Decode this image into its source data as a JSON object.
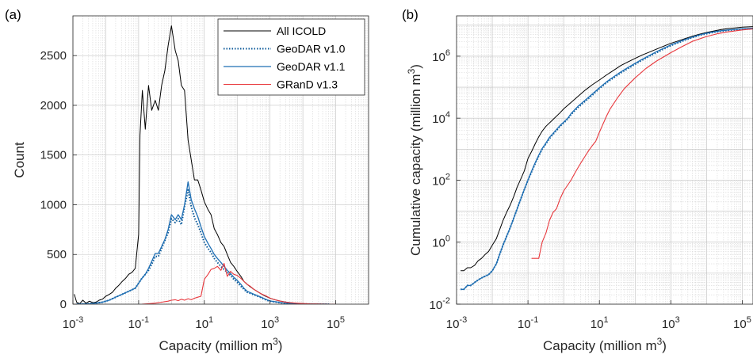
{
  "panels": {
    "a": "(a)",
    "b": "(b)"
  },
  "colors": {
    "all_icold": "#000000",
    "geodar_v10": "#0b5a9a",
    "geodar_v11": "#1f6fb4",
    "grand": "#e8383d",
    "grid": "#c8c8c8",
    "axis": "#262626"
  },
  "chart_data": [
    {
      "panel": "(a)",
      "type": "line",
      "xscale": "log",
      "xlim": [
        0.001,
        1000000
      ],
      "ylim": [
        0,
        2900
      ],
      "xlabel": "Capacity (million m³)",
      "ylabel": "Count",
      "xticks": [
        {
          "t": "10",
          "s": "-3"
        },
        {
          "t": "10",
          "s": "-1"
        },
        {
          "t": "10",
          "s": "1"
        },
        {
          "t": "10",
          "s": "3"
        },
        {
          "t": "10",
          "s": "5"
        }
      ],
      "yticks": [
        "0",
        "500",
        "1000",
        "1500",
        "2000",
        "2500"
      ],
      "grid": true,
      "legend": "top-right",
      "series": [
        {
          "name": "All ICOLD",
          "style": "solid",
          "x": [
            0.0011,
            0.0013,
            0.0016,
            0.002,
            0.0025,
            0.0032,
            0.004,
            0.005,
            0.0063,
            0.0079,
            0.01,
            0.013,
            0.016,
            0.02,
            0.025,
            0.032,
            0.04,
            0.05,
            0.063,
            0.079,
            0.1,
            0.11,
            0.13,
            0.16,
            0.2,
            0.25,
            0.32,
            0.4,
            0.5,
            0.63,
            0.79,
            1.0,
            1.3,
            1.6,
            2.0,
            2.5,
            3.2,
            4.0,
            5.0,
            6.3,
            7.9,
            10,
            13,
            16,
            20,
            25,
            32,
            40,
            50,
            63,
            79,
            100,
            130,
            160,
            200,
            250,
            320,
            400,
            500,
            630,
            790,
            1000,
            1300,
            1600,
            2000,
            2500,
            3200,
            4000,
            5000,
            6300,
            7900,
            10000,
            13000,
            16000,
            20000,
            25000,
            32000,
            40000,
            50000,
            63000,
            79000,
            100000
          ],
          "y": [
            100,
            20,
            5,
            40,
            10,
            30,
            15,
            20,
            40,
            50,
            80,
            100,
            120,
            160,
            190,
            230,
            260,
            300,
            320,
            360,
            700,
            1700,
            2150,
            1760,
            2200,
            1950,
            2050,
            1950,
            2200,
            2350,
            2600,
            2800,
            2550,
            2450,
            2200,
            2150,
            1650,
            1450,
            1250,
            1250,
            1150,
            1030,
            950,
            900,
            760,
            700,
            620,
            580,
            500,
            420,
            380,
            330,
            280,
            230,
            200,
            175,
            150,
            130,
            110,
            90,
            75,
            60,
            48,
            40,
            32,
            26,
            20,
            16,
            12,
            9,
            7,
            5,
            4,
            3,
            2,
            2,
            1,
            1,
            1,
            0,
            0,
            0
          ]
        },
        {
          "name": "GeoDAR v1.0",
          "style": "dotted",
          "x": [
            0.0013,
            0.002,
            0.0032,
            0.005,
            0.0079,
            0.0126,
            0.02,
            0.032,
            0.05,
            0.079,
            0.126,
            0.16,
            0.2,
            0.25,
            0.32,
            0.4,
            0.5,
            0.63,
            0.79,
            1.0,
            1.3,
            1.6,
            2.0,
            2.5,
            3.2,
            4.0,
            5.0,
            6.3,
            7.9,
            10,
            13,
            16,
            20,
            25,
            32,
            40,
            50,
            63,
            79,
            100,
            130,
            160,
            200,
            320,
            500,
            790,
            1000,
            1600,
            2500,
            4000,
            6300,
            10000,
            16000,
            25000,
            40000,
            63000
          ],
          "y": [
            0,
            2,
            5,
            10,
            20,
            40,
            70,
            100,
            130,
            160,
            260,
            300,
            340,
            400,
            480,
            480,
            560,
            640,
            720,
            860,
            820,
            860,
            800,
            980,
            1150,
            980,
            870,
            800,
            720,
            620,
            560,
            520,
            460,
            420,
            380,
            350,
            320,
            290,
            250,
            220,
            180,
            150,
            120,
            95,
            70,
            40,
            30,
            20,
            10,
            6,
            3,
            2,
            1,
            0,
            0,
            0
          ]
        },
        {
          "name": "GeoDAR v1.1",
          "style": "solid",
          "x": [
            0.0013,
            0.002,
            0.0032,
            0.005,
            0.0079,
            0.0126,
            0.02,
            0.032,
            0.05,
            0.079,
            0.126,
            0.16,
            0.2,
            0.25,
            0.32,
            0.4,
            0.5,
            0.63,
            0.79,
            1.0,
            1.3,
            1.6,
            2.0,
            2.5,
            3.2,
            4.0,
            5.0,
            6.3,
            7.9,
            10,
            13,
            16,
            20,
            25,
            32,
            40,
            50,
            63,
            79,
            100,
            130,
            160,
            200,
            320,
            500,
            790,
            1000,
            1600,
            2500,
            4000,
            6300,
            10000,
            16000,
            25000,
            40000,
            63000
          ],
          "y": [
            0,
            2,
            5,
            10,
            20,
            40,
            70,
            100,
            130,
            160,
            260,
            300,
            360,
            430,
            510,
            510,
            580,
            650,
            750,
            900,
            850,
            900,
            850,
            1000,
            1230,
            1050,
            960,
            880,
            780,
            680,
            610,
            560,
            500,
            460,
            420,
            380,
            340,
            310,
            270,
            240,
            200,
            160,
            130,
            100,
            75,
            45,
            32,
            22,
            12,
            7,
            4,
            2,
            1,
            0,
            0,
            0
          ]
        },
        {
          "name": "GRanD v1.3",
          "style": "solid",
          "x": [
            0.126,
            0.2,
            0.32,
            0.5,
            0.79,
            1.0,
            1.3,
            1.6,
            2.0,
            2.5,
            3.2,
            4.0,
            5.0,
            6.3,
            7.9,
            10,
            13,
            16,
            20,
            25,
            32,
            40,
            50,
            63,
            79,
            100,
            130,
            160,
            200,
            250,
            320,
            400,
            500,
            790,
            1000,
            1600,
            2500,
            4000,
            6300,
            10000,
            16000,
            25000,
            40000,
            63000,
            100000
          ],
          "y": [
            0,
            5,
            10,
            20,
            30,
            40,
            45,
            35,
            50,
            40,
            55,
            45,
            60,
            70,
            80,
            250,
            300,
            350,
            360,
            380,
            340,
            410,
            280,
            330,
            300,
            290,
            260,
            230,
            200,
            180,
            150,
            130,
            110,
            80,
            60,
            40,
            25,
            15,
            10,
            6,
            3,
            2,
            1,
            0,
            0
          ]
        }
      ]
    },
    {
      "panel": "(b)",
      "type": "line",
      "xscale": "log",
      "yscale": "log",
      "xlim": [
        0.001,
        200000
      ],
      "ylim": [
        0.01,
        20000000
      ],
      "xlabel": "Capacity (million m³)",
      "ylabel": "Cumulative capacity (million m³)",
      "xticks": [
        {
          "t": "10",
          "s": "-3"
        },
        {
          "t": "10",
          "s": "-1"
        },
        {
          "t": "10",
          "s": "1"
        },
        {
          "t": "10",
          "s": "3"
        },
        {
          "t": "10",
          "s": "5"
        }
      ],
      "yticks": [
        {
          "t": "10",
          "s": "-2"
        },
        {
          "t": "10",
          "s": "0"
        },
        {
          "t": "10",
          "s": "2"
        },
        {
          "t": "10",
          "s": "4"
        },
        {
          "t": "10",
          "s": "6"
        }
      ],
      "grid": true,
      "series": [
        {
          "name": "All ICOLD",
          "style": "solid",
          "x": [
            0.0013,
            0.0016,
            0.002,
            0.0025,
            0.0032,
            0.004,
            0.005,
            0.0063,
            0.0079,
            0.01,
            0.013,
            0.016,
            0.02,
            0.025,
            0.032,
            0.04,
            0.05,
            0.063,
            0.079,
            0.1,
            0.13,
            0.16,
            0.2,
            0.25,
            0.32,
            0.5,
            0.79,
            1.0,
            1.6,
            2.5,
            4.0,
            6.3,
            10,
            16,
            25,
            40,
            63,
            100,
            160,
            250,
            400,
            630,
            1000,
            1600,
            2500,
            4000,
            6300,
            10000,
            16000,
            25000,
            40000,
            63000,
            100000,
            200000
          ],
          "y": [
            0.12,
            0.12,
            0.15,
            0.15,
            0.18,
            0.25,
            0.3,
            0.4,
            0.5,
            0.8,
            1.3,
            2.5,
            5,
            9,
            16,
            30,
            60,
            110,
            200,
            500,
            900,
            1500,
            2500,
            3800,
            5500,
            9000,
            15000,
            20000,
            32000,
            50000,
            80000,
            120000,
            170000,
            250000,
            350000,
            500000,
            650000,
            850000,
            1100000,
            1350000,
            1700000,
            2100000,
            2600000,
            3100000,
            3700000,
            4400000,
            5100000,
            5800000,
            6500000,
            7200000,
            7800000,
            8200000,
            8600000,
            9000000
          ]
        },
        {
          "name": "GeoDAR v1.0",
          "style": "dotted",
          "x": [
            0.0013,
            0.0016,
            0.002,
            0.0025,
            0.0032,
            0.004,
            0.005,
            0.0063,
            0.0079,
            0.01,
            0.013,
            0.016,
            0.02,
            0.025,
            0.032,
            0.04,
            0.05,
            0.063,
            0.079,
            0.1,
            0.13,
            0.16,
            0.2,
            0.25,
            0.32,
            0.4,
            0.5,
            0.63,
            0.79,
            1.0,
            1.3,
            1.6,
            2.5,
            4.0,
            6.3,
            10,
            16,
            25,
            40,
            63,
            100,
            160,
            250,
            400,
            630,
            1000,
            1600,
            2500,
            4000,
            6300,
            10000,
            16000,
            25000,
            40000,
            63000,
            100000,
            200000
          ],
          "y": [
            0.03,
            0.03,
            0.04,
            0.04,
            0.05,
            0.06,
            0.07,
            0.08,
            0.09,
            0.12,
            0.2,
            0.4,
            0.8,
            1.5,
            3,
            6,
            12,
            25,
            50,
            100,
            200,
            350,
            600,
            1000,
            1500,
            2200,
            3000,
            4000,
            5500,
            7000,
            9500,
            13000,
            22000,
            35000,
            55000,
            90000,
            140000,
            200000,
            290000,
            400000,
            550000,
            750000,
            1000000,
            1300000,
            1700000,
            2200000,
            2700000,
            3300000,
            4000000,
            4700000,
            5300000,
            5900000,
            6400000,
            6800000,
            7100000,
            7400000,
            7800000
          ]
        },
        {
          "name": "GeoDAR v1.1",
          "style": "solid",
          "x": [
            0.0013,
            0.0016,
            0.002,
            0.0025,
            0.0032,
            0.004,
            0.005,
            0.0063,
            0.0079,
            0.01,
            0.013,
            0.016,
            0.02,
            0.025,
            0.032,
            0.04,
            0.05,
            0.063,
            0.079,
            0.1,
            0.13,
            0.16,
            0.2,
            0.25,
            0.32,
            0.4,
            0.5,
            0.63,
            0.79,
            1.0,
            1.3,
            1.6,
            2.5,
            4.0,
            6.3,
            10,
            16,
            25,
            40,
            63,
            100,
            160,
            250,
            400,
            630,
            1000,
            1600,
            2500,
            4000,
            6300,
            10000,
            16000,
            25000,
            40000,
            63000,
            100000,
            200000
          ],
          "y": [
            0.03,
            0.03,
            0.04,
            0.04,
            0.05,
            0.06,
            0.07,
            0.08,
            0.09,
            0.12,
            0.2,
            0.4,
            0.8,
            1.5,
            3,
            6,
            12,
            25,
            50,
            100,
            210,
            370,
            640,
            1050,
            1600,
            2400,
            3200,
            4300,
            5800,
            7500,
            10000,
            14000,
            24000,
            38000,
            60000,
            95000,
            150000,
            215000,
            310000,
            430000,
            590000,
            800000,
            1050000,
            1400000,
            1800000,
            2300000,
            2850000,
            3450000,
            4150000,
            4850000,
            5500000,
            6100000,
            6600000,
            7000000,
            7300000,
            7600000,
            8000000
          ]
        },
        {
          "name": "GRanD v1.3",
          "style": "solid",
          "x": [
            0.126,
            0.16,
            0.2,
            0.25,
            0.32,
            0.4,
            0.5,
            0.63,
            0.79,
            1.0,
            1.3,
            1.6,
            2.0,
            2.5,
            3.2,
            4.0,
            5.0,
            6.3,
            7.9,
            10,
            13,
            16,
            20,
            32,
            50,
            100,
            200,
            400,
            1000,
            2000,
            4000,
            10000,
            20000,
            40000,
            100000,
            200000
          ],
          "y": [
            0.3,
            0.3,
            0.3,
            1,
            2,
            5,
            9,
            12,
            25,
            45,
            70,
            100,
            160,
            250,
            400,
            600,
            900,
            1300,
            1800,
            3500,
            7000,
            12000,
            20000,
            45000,
            90000,
            200000,
            400000,
            700000,
            1300000,
            2000000,
            3000000,
            4300000,
            5300000,
            6100000,
            7000000,
            7600000
          ]
        }
      ]
    }
  ]
}
